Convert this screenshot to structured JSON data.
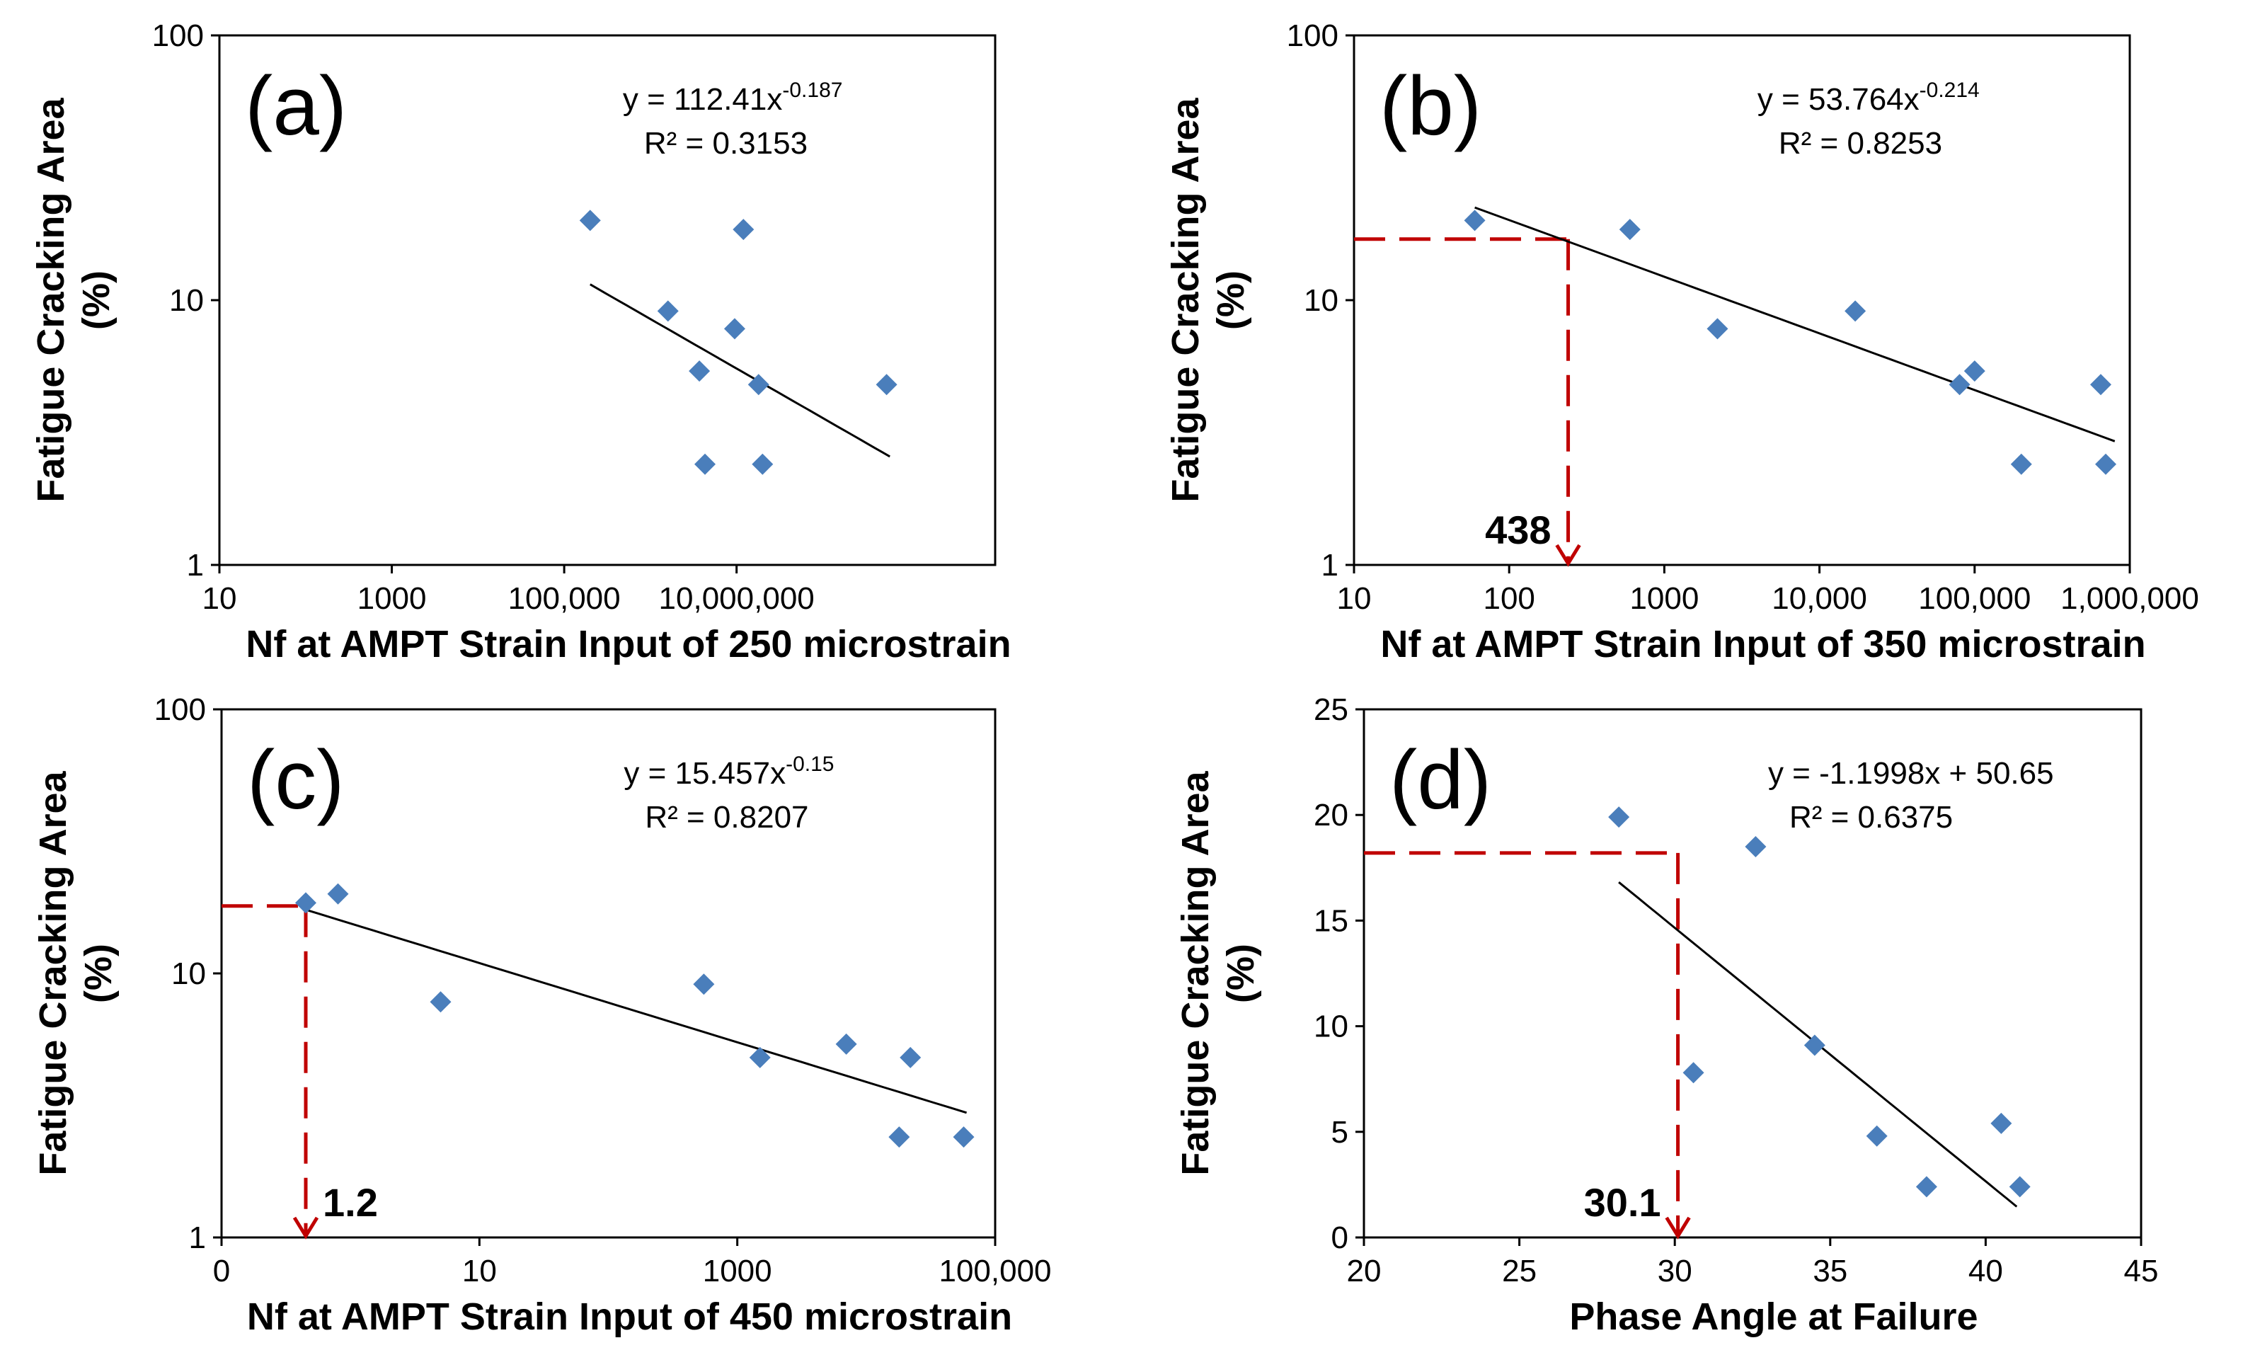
{
  "colors": {
    "marker": "#4a7ebb",
    "trendline": "#000000",
    "guide": "#c00000"
  },
  "chart_data": [
    {
      "type": "scatter",
      "panel_label": "(a)",
      "xscale": "log",
      "yscale": "log",
      "xlim": [
        10,
        10000000000
      ],
      "ylim": [
        1,
        100
      ],
      "x_ticks": [
        10,
        1000,
        100000,
        10000000
      ],
      "x_tick_labels": [
        "10",
        "1000",
        "100,000",
        "10,000,000"
      ],
      "y_ticks": [
        1,
        10,
        100
      ],
      "y_tick_labels": [
        "1",
        "10",
        "100"
      ],
      "xlabel": "Nf at AMPT Strain Input of 250 microstrain",
      "ylabel_line1": "Fatigue Cracking Area",
      "ylabel_line2": "(%)",
      "equation_base": "y = 112.41x",
      "equation_exp": "-0.187",
      "r2_text": "R² = 0.3153",
      "trend": {
        "kind": "power",
        "a": 112.41,
        "b": -0.187,
        "x_range": [
          200000,
          600000000
        ]
      },
      "points": [
        {
          "x": 200000,
          "y": 20
        },
        {
          "x": 1600000,
          "y": 9.1
        },
        {
          "x": 3700000,
          "y": 5.4
        },
        {
          "x": 4300000,
          "y": 2.4
        },
        {
          "x": 9500000,
          "y": 7.8
        },
        {
          "x": 12000000,
          "y": 18.5
        },
        {
          "x": 18000000,
          "y": 4.8
        },
        {
          "x": 20000000,
          "y": 2.4
        },
        {
          "x": 550000000,
          "y": 4.8
        }
      ],
      "annotation": null
    },
    {
      "type": "scatter",
      "panel_label": "(b)",
      "xscale": "log",
      "yscale": "log",
      "xlim": [
        10,
        1000000
      ],
      "ylim": [
        1,
        100
      ],
      "x_ticks": [
        10,
        100,
        1000,
        10000,
        100000,
        1000000
      ],
      "x_tick_labels": [
        "10",
        "100",
        "1000",
        "10,000",
        "100,000",
        "1,000,000"
      ],
      "y_ticks": [
        1,
        10,
        100
      ],
      "y_tick_labels": [
        "1",
        "10",
        "100"
      ],
      "xlabel": "Nf at AMPT Strain Input of 350 microstrain",
      "ylabel_line1": "Fatigue Cracking Area",
      "ylabel_line2": "(%)",
      "equation_base": "y = 53.764x",
      "equation_exp": "-0.214",
      "r2_text": "R² = 0.8253",
      "trend": {
        "kind": "power",
        "a": 53.764,
        "b": -0.214,
        "x_range": [
          60,
          800000
        ]
      },
      "points": [
        {
          "x": 60,
          "y": 20
        },
        {
          "x": 600,
          "y": 18.5
        },
        {
          "x": 2200,
          "y": 7.8
        },
        {
          "x": 17000,
          "y": 9.1
        },
        {
          "x": 80000,
          "y": 4.8
        },
        {
          "x": 100000,
          "y": 5.4
        },
        {
          "x": 200000,
          "y": 2.4
        },
        {
          "x": 650000,
          "y": 4.8
        },
        {
          "x": 700000,
          "y": 2.4
        }
      ],
      "annotation": {
        "x": 240,
        "y": 17,
        "label": "438"
      }
    },
    {
      "type": "scatter",
      "panel_label": "(c)",
      "xscale": "log",
      "yscale": "log",
      "xlim": [
        0.1,
        100000
      ],
      "ylim": [
        1,
        100
      ],
      "x_ticks": [
        0.1,
        10,
        1000,
        100000
      ],
      "x_tick_labels": [
        "0",
        "10",
        "1000",
        "100,000"
      ],
      "y_ticks": [
        1,
        10,
        100
      ],
      "y_tick_labels": [
        "1",
        "10",
        "100"
      ],
      "xlabel": "Nf at AMPT Strain Input of 450 microstrain",
      "ylabel_line1": "Fatigue Cracking Area",
      "ylabel_line2": "(%)",
      "equation_base": "y = 15.457x",
      "equation_exp": "-0.15",
      "r2_text": "R² = 0.8207",
      "trend": {
        "kind": "power",
        "a": 15.457,
        "b": -0.15,
        "x_range": [
          0.45,
          60000
        ]
      },
      "points": [
        {
          "x": 0.45,
          "y": 18.5
        },
        {
          "x": 0.8,
          "y": 20
        },
        {
          "x": 5,
          "y": 7.8
        },
        {
          "x": 550,
          "y": 9.1
        },
        {
          "x": 1500,
          "y": 4.8
        },
        {
          "x": 7000,
          "y": 5.4
        },
        {
          "x": 18000,
          "y": 2.4
        },
        {
          "x": 22000,
          "y": 4.8
        },
        {
          "x": 57000,
          "y": 2.4
        }
      ],
      "annotation": {
        "x": 0.45,
        "y": 18,
        "label": "1.2"
      }
    },
    {
      "type": "scatter",
      "panel_label": "(d)",
      "xscale": "linear",
      "yscale": "linear",
      "xlim": [
        20,
        45
      ],
      "ylim": [
        0,
        25
      ],
      "x_ticks": [
        20,
        25,
        30,
        35,
        40,
        45
      ],
      "x_tick_labels": [
        "20",
        "25",
        "30",
        "35",
        "40",
        "45"
      ],
      "y_ticks": [
        0,
        5,
        10,
        15,
        20,
        25
      ],
      "y_tick_labels": [
        "0",
        "5",
        "10",
        "15",
        "20",
        "25"
      ],
      "xlabel": "Phase Angle at Failure",
      "ylabel_line1": "Fatigue Cracking Area",
      "ylabel_line2": "(%)",
      "equation_base": "y = -1.1998x + 50.65",
      "equation_exp": "",
      "r2_text": "R² = 0.6375",
      "trend": {
        "kind": "linear",
        "m": -1.1998,
        "c": 50.65,
        "x_range": [
          28.2,
          41
        ]
      },
      "points": [
        {
          "x": 28.2,
          "y": 19.9
        },
        {
          "x": 30.6,
          "y": 7.8
        },
        {
          "x": 32.6,
          "y": 18.5
        },
        {
          "x": 34.5,
          "y": 9.1
        },
        {
          "x": 36.5,
          "y": 4.8
        },
        {
          "x": 38.1,
          "y": 2.4
        },
        {
          "x": 40.5,
          "y": 5.4
        },
        {
          "x": 41.1,
          "y": 2.4
        }
      ],
      "annotation": {
        "x": 30.1,
        "y": 18.2,
        "label": "30.1"
      }
    }
  ]
}
